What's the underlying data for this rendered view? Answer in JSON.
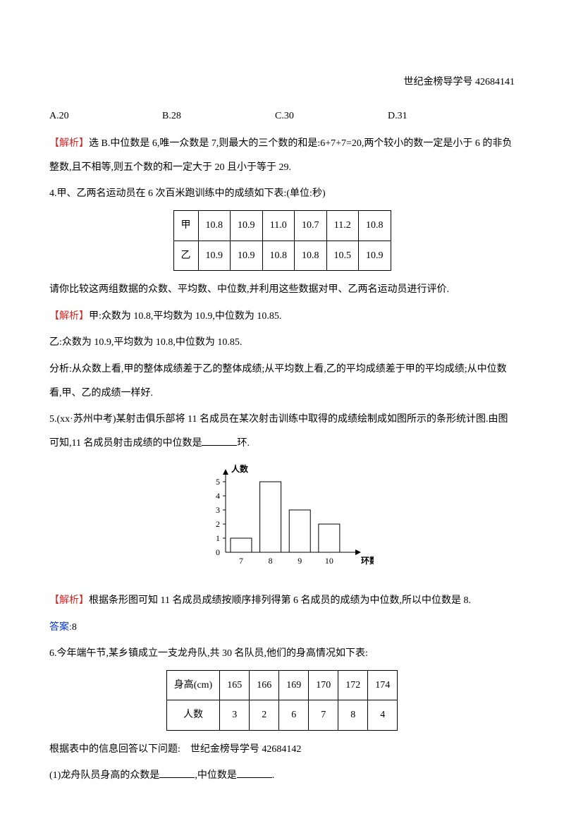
{
  "header_right": "世纪金榜导学号 42684141",
  "q3": {
    "options": {
      "a": "A.20",
      "b": "B.28",
      "c": "C.30",
      "d": "D.31"
    },
    "analysis_label": "【解析】",
    "analysis_text": "选 B.中位数是 6,唯一众数是 7,则最大的三个数的和是:6+7+7=20,两个较小的数一定是小于 6 的非负整数,且不相等,则五个数的和一定大于 20 且小于等于 29."
  },
  "q4": {
    "stem": "4.甲、乙两名运动员在 6 次百米跑训练中的成绩如下表:(单位:秒)",
    "table": {
      "row1_label": "甲",
      "row1": [
        "10.8",
        "10.9",
        "11.0",
        "10.7",
        "11.2",
        "10.8"
      ],
      "row2_label": "乙",
      "row2": [
        "10.9",
        "10.9",
        "10.8",
        "10.8",
        "10.5",
        "10.9"
      ]
    },
    "ask": "请你比较这两组数据的众数、平均数、中位数,并利用这些数据对甲、乙两名运动员进行评价.",
    "analysis_label": "【解析】",
    "line1": "甲:众数为 10.8,平均数为 10.9,中位数为 10.85.",
    "line2": "乙:众数为 10.9,平均数为 10.8,中位数为 10.85.",
    "line3": "分析:从众数上看,甲的整体成绩差于乙的整体成绩;从平均数上看,乙的平均成绩差于甲的平均成绩;从中位数看,甲、乙的成绩一样好."
  },
  "q5": {
    "stem": "5.(xx·苏州中考)某射击俱乐部将 11 名成员在某次射击训练中取得的成绩绘制成如图所示的条形统计图.由图可知,11 名成员射击成绩的中位数是",
    "stem_tail": "环.",
    "chart": {
      "type": "bar",
      "ylabel": "人数",
      "xlabel": "环数",
      "categories": [
        "7",
        "8",
        "9",
        "10"
      ],
      "values": [
        1,
        5,
        3,
        2
      ],
      "ylim": [
        0,
        5
      ],
      "ytick_step": 1,
      "bar_color": "#ffffff",
      "bar_border": "#000000",
      "axis_color": "#000000",
      "font_size": 12
    },
    "analysis_label": "【解析】",
    "analysis_text": "根据条形图可知 11 名成员成绩按顺序排列得第 6 名成员的成绩为中位数,所以中位数是 8.",
    "answer_label": "答案:",
    "answer_value": "8"
  },
  "q6": {
    "stem": "6.今年端午节,某乡镇成立一支龙舟队,共 30 名队员,他们的身高情况如下表:",
    "table": {
      "col_header": "身高(cm)",
      "cols": [
        "165",
        "166",
        "169",
        "170",
        "172",
        "174"
      ],
      "row_header": "人数",
      "row": [
        "3",
        "2",
        "6",
        "7",
        "8",
        "4"
      ]
    },
    "ask1": "根据表中的信息回答以下问题:　世纪金榜导学号 42684142",
    "ask2_a": "(1)龙舟队员身高的众数是",
    "ask2_b": ",中位数是",
    "ask2_c": "."
  }
}
